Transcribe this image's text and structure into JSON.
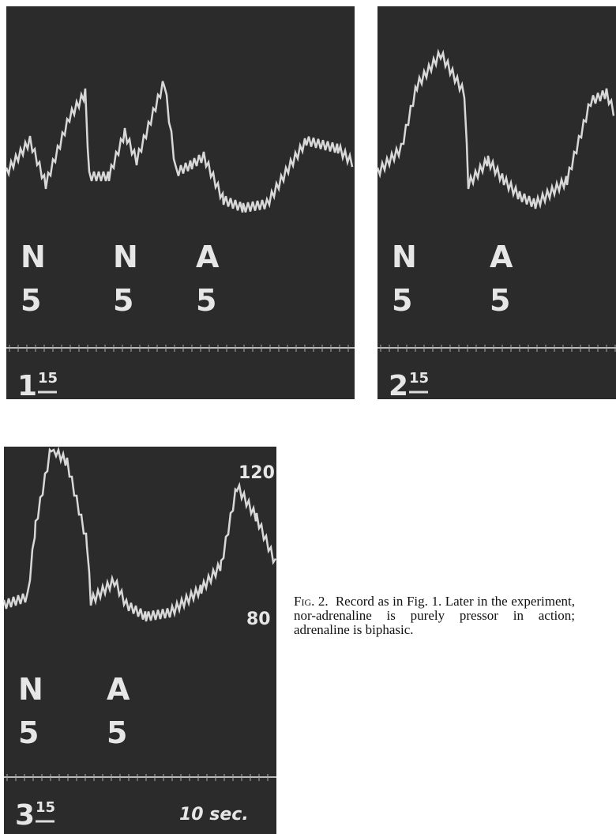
{
  "panels": [
    {
      "labels": [
        {
          "drug": "N",
          "dose": "5"
        },
        {
          "drug": "N",
          "dose": "5"
        },
        {
          "drug": "A",
          "dose": "5"
        }
      ],
      "number": "1",
      "time": "15"
    },
    {
      "labels": [
        {
          "drug": "N",
          "dose": "5"
        },
        {
          "drug": "A",
          "dose": "5"
        }
      ],
      "number": "2",
      "time": "15"
    },
    {
      "labels": [
        {
          "drug": "N",
          "dose": "5"
        },
        {
          "drug": "A",
          "dose": "5"
        }
      ],
      "number": "3",
      "time": "15",
      "scale_high": "120",
      "scale_low": "80",
      "time_marker": "10 sec."
    }
  ],
  "caption": {
    "label": "Fig. 2.",
    "text": "Record as in Fig. 1. Later in the experiment, nor-adrenaline is purely pressor in action; adrenaline is biphasic."
  }
}
